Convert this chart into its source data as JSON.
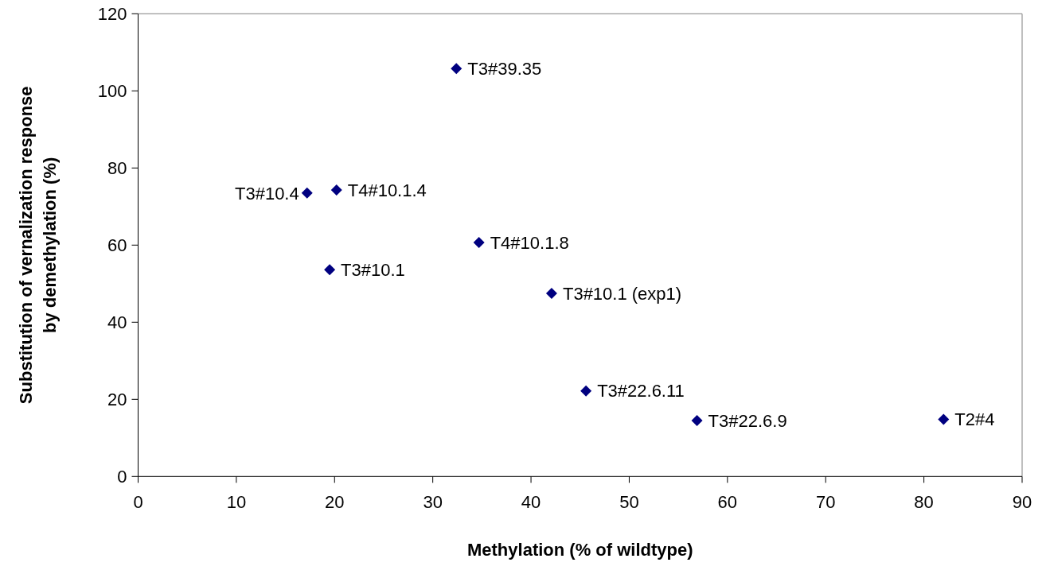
{
  "chart_data": {
    "type": "scatter",
    "xlabel": "Methylation (% of wildtype)",
    "ylabel": "Substitution of vernalization response\nby demethylation (%)",
    "series": [
      {
        "color": "#000080",
        "x": [
          32.4,
          17.2,
          20.2,
          34.7,
          19.5,
          42.1,
          45.6,
          56.9,
          82.0
        ],
        "values": [
          105.8,
          73.5,
          74.3,
          60.7,
          53.6,
          47.5,
          22.2,
          14.5,
          14.8
        ]
      }
    ],
    "marker": "diamond",
    "xlim": [
      0,
      90
    ],
    "ylim": [
      0,
      120
    ],
    "xticks": [
      0,
      10,
      20,
      30,
      40,
      50,
      60,
      70,
      80,
      90
    ],
    "yticks": [
      0,
      20,
      40,
      60,
      80,
      100,
      120
    ],
    "annotations": [
      {
        "text": "T3#39.35",
        "x": 32.4,
        "y": 105.8
      },
      {
        "text": "T3#10.4",
        "x": 17.2,
        "y": 73.5
      },
      {
        "text": "T4#10.1.4",
        "x": 20.2,
        "y": 74.3
      },
      {
        "text": "T4#10.1.8",
        "x": 34.7,
        "y": 60.7
      },
      {
        "text": "T3#10.1",
        "x": 19.5,
        "y": 53.6
      },
      {
        "text": "T3#10.1 (exp1)",
        "x": 42.1,
        "y": 47.5
      },
      {
        "text": "T3#22.6.11",
        "x": 45.6,
        "y": 22.2
      },
      {
        "text": "T3#22.6.9",
        "x": 56.9,
        "y": 14.5
      },
      {
        "text": "T2#4",
        "x": 82.0,
        "y": 14.8
      }
    ]
  }
}
